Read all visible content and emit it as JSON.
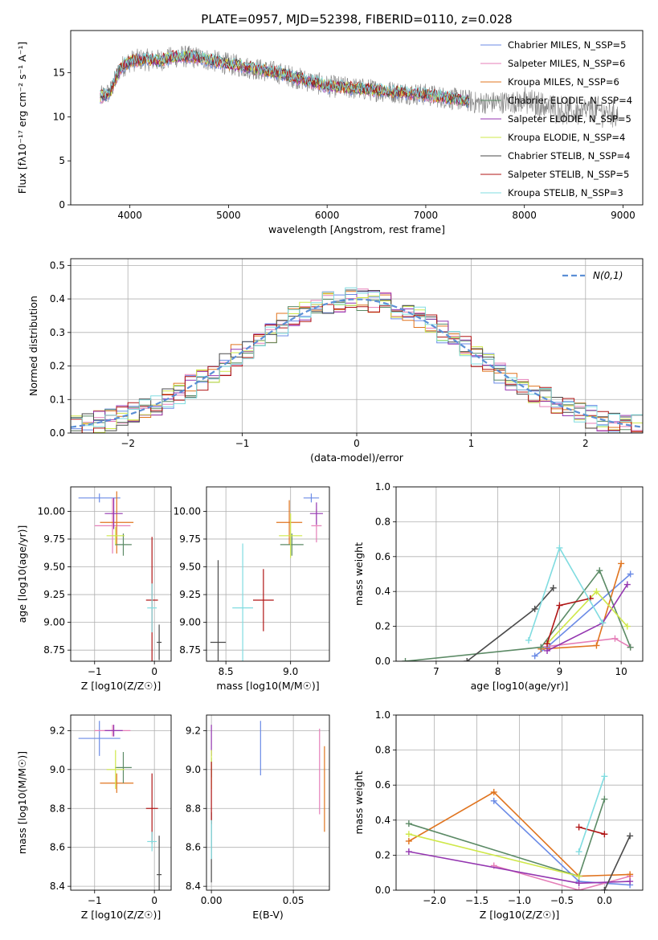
{
  "figure": {
    "title": "PLATE=0957, MJD=52398, FIBERID=0110, z=0.028"
  },
  "colors": {
    "chabrier_miles": "#6b8be6",
    "salpeter_miles": "#e57fb8",
    "kroupa_miles": "#e0741f",
    "chabrier_elodie": "#5b8a65",
    "salpeter_elodie": "#9436b0",
    "kroupa_elodie": "#cfe84a",
    "chabrier_stelib": "#4a4a4a",
    "salpeter_stelib": "#b01515",
    "kroupa_stelib": "#80dce0",
    "observed_spectrum": "#7f7f7f",
    "normal_fit": "#5b8fd6"
  },
  "chart_data": [
    {
      "id": "spectrum",
      "type": "line",
      "xlabel": "wavelength [Angstrom, rest frame]",
      "ylabel": "Flux [fλ10⁻¹⁷ erg cm⁻² s⁻¹ A⁻¹]",
      "xlim": [
        3400,
        9200
      ],
      "ylim": [
        0,
        19.8
      ],
      "xticks": [
        4000,
        5000,
        6000,
        7000,
        8000,
        9000
      ],
      "yticks": [
        0,
        5,
        10,
        15
      ],
      "legend_position": "top-right",
      "legend": [
        "Chabrier MILES, N_SSP=5",
        "Salpeter MILES, N_SSP=6",
        "Kroupa MILES, N_SSP=6",
        "Chabrier ELODIE, N_SSP=4",
        "Salpeter ELODIE, N_SSP=5",
        "Kroupa ELODIE, N_SSP=4",
        "Chabrier STELIB, N_SSP=4",
        "Salpeter STELIB, N_SSP=5",
        "Kroupa STELIB, N_SSP=3"
      ],
      "model_range": [
        3700,
        7440
      ],
      "continuum": [
        [
          3700,
          12.2
        ],
        [
          3800,
          12.8
        ],
        [
          3900,
          15.5
        ],
        [
          4000,
          16.3
        ],
        [
          4100,
          16.5
        ],
        [
          4300,
          16.4
        ],
        [
          4500,
          16.9
        ],
        [
          4700,
          16.7
        ],
        [
          5000,
          16.0
        ],
        [
          5500,
          15.0
        ],
        [
          6000,
          13.5
        ],
        [
          6500,
          13.0
        ],
        [
          7000,
          12.5
        ],
        [
          7440,
          11.8
        ],
        [
          7500,
          11.6
        ],
        [
          8000,
          11.7
        ],
        [
          8500,
          10.5
        ],
        [
          8700,
          10.8
        ],
        [
          8950,
          10.3
        ]
      ]
    },
    {
      "id": "residuals",
      "type": "line",
      "xlabel": "(data-model)/error",
      "ylabel": "Normed distribution",
      "xlim": [
        -2.5,
        2.5
      ],
      "ylim": [
        0,
        0.52
      ],
      "xticks": [
        -2,
        -1,
        0,
        1,
        2
      ],
      "yticks": [
        0.0,
        0.1,
        0.2,
        0.3,
        0.4,
        0.5
      ],
      "grid": true,
      "legend_position": "top-right",
      "legend": [
        "N(0,1)"
      ],
      "histogram_bins": 50
    },
    {
      "id": "age_vs_z",
      "type": "scatter",
      "xlabel": "Z [log10(Z/Z☉)]",
      "ylabel": "age  [log10(age/yr)]",
      "xlim": [
        -1.4,
        0.28
      ],
      "ylim": [
        8.65,
        10.22
      ],
      "xticks": [
        -1,
        0
      ],
      "yticks": [
        8.75,
        9.0,
        9.25,
        9.5,
        9.75,
        10.0
      ],
      "grid": true,
      "points": [
        {
          "model": "chabrier_miles",
          "x": -0.92,
          "xerr": 0.35,
          "y": 10.12,
          "yerr": 0.04
        },
        {
          "model": "salpeter_miles",
          "x": -0.7,
          "xerr": 0.3,
          "y": 9.87,
          "yerr": 0.25
        },
        {
          "model": "kroupa_miles",
          "x": -0.63,
          "xerr": 0.28,
          "y": 9.9,
          "yerr": 0.28
        },
        {
          "model": "chabrier_elodie",
          "x": -0.52,
          "xerr": 0.14,
          "y": 9.7,
          "yerr": 0.1
        },
        {
          "model": "salpeter_elodie",
          "x": -0.68,
          "xerr": 0.15,
          "y": 9.98,
          "yerr": 0.14
        },
        {
          "model": "kroupa_elodie",
          "x": -0.65,
          "xerr": 0.15,
          "y": 9.78,
          "yerr": 0.08
        },
        {
          "model": "chabrier_stelib",
          "x": 0.08,
          "xerr": 0.04,
          "y": 8.82,
          "yerr": 0.16
        },
        {
          "model": "salpeter_stelib",
          "x": -0.04,
          "xerr": 0.1,
          "y": 9.2,
          "yerr": 0.57
        },
        {
          "model": "kroupa_stelib",
          "x": -0.04,
          "xerr": 0.08,
          "y": 9.13,
          "yerr": 0.22
        }
      ]
    },
    {
      "id": "age_vs_mass",
      "type": "scatter",
      "xlabel": "mass [log10(M/M☉)]",
      "ylabel": "",
      "xlim": [
        8.35,
        9.3
      ],
      "ylim": [
        8.65,
        10.22
      ],
      "xticks": [
        8.5,
        9.0
      ],
      "yticks": [
        8.75,
        9.0,
        9.25,
        9.5,
        9.75,
        10.0
      ],
      "grid": true,
      "points": [
        {
          "model": "chabrier_miles",
          "x": 9.16,
          "xerr": 0.06,
          "y": 10.12,
          "yerr": 0.04
        },
        {
          "model": "salpeter_miles",
          "x": 9.2,
          "xerr": 0.04,
          "y": 9.87,
          "yerr": 0.15
        },
        {
          "model": "kroupa_miles",
          "x": 8.99,
          "xerr": 0.1,
          "y": 9.9,
          "yerr": 0.2
        },
        {
          "model": "chabrier_elodie",
          "x": 9.01,
          "xerr": 0.09,
          "y": 9.7,
          "yerr": 0.1
        },
        {
          "model": "salpeter_elodie",
          "x": 9.2,
          "xerr": 0.05,
          "y": 9.98,
          "yerr": 0.1
        },
        {
          "model": "kroupa_elodie",
          "x": 9.0,
          "xerr": 0.09,
          "y": 9.78,
          "yerr": 0.2
        },
        {
          "model": "chabrier_stelib",
          "x": 8.44,
          "xerr": 0.06,
          "y": 8.82,
          "yerr": 0.74
        },
        {
          "model": "salpeter_stelib",
          "x": 8.79,
          "xerr": 0.08,
          "y": 9.2,
          "yerr": 0.28
        },
        {
          "model": "kroupa_stelib",
          "x": 8.63,
          "xerr": 0.08,
          "y": 9.13,
          "yerr": 0.58
        }
      ]
    },
    {
      "id": "weight_vs_age",
      "type": "line",
      "xlabel": "age  [log10(age/yr)]",
      "ylabel": "mass weight",
      "xlim": [
        6.35,
        10.35
      ],
      "ylim": [
        0,
        1.0
      ],
      "xticks": [
        7,
        8,
        9,
        10
      ],
      "yticks": [
        0.0,
        0.2,
        0.4,
        0.6,
        0.8,
        1.0
      ],
      "grid": true,
      "series": [
        {
          "model": "chabrier_miles",
          "x": [
            8.6,
            8.8,
            10.15
          ],
          "y": [
            0.03,
            0.08,
            0.5
          ]
        },
        {
          "model": "salpeter_miles",
          "x": [
            8.7,
            9.9,
            10.15
          ],
          "y": [
            0.08,
            0.13,
            0.08
          ]
        },
        {
          "model": "kroupa_miles",
          "x": [
            8.7,
            9.6,
            10.0
          ],
          "y": [
            0.07,
            0.09,
            0.56
          ]
        },
        {
          "model": "chabrier_elodie",
          "x": [
            6.5,
            8.7,
            9.65,
            10.15
          ],
          "y": [
            0.0,
            0.08,
            0.52,
            0.08
          ]
        },
        {
          "model": "salpeter_elodie",
          "x": [
            8.8,
            9.7,
            10.1
          ],
          "y": [
            0.06,
            0.22,
            0.44
          ]
        },
        {
          "model": "kroupa_elodie",
          "x": [
            8.8,
            9.6,
            10.1
          ],
          "y": [
            0.1,
            0.4,
            0.2
          ]
        },
        {
          "model": "chabrier_stelib",
          "x": [
            7.5,
            8.6,
            8.9
          ],
          "y": [
            0.0,
            0.3,
            0.42
          ]
        },
        {
          "model": "salpeter_stelib",
          "x": [
            8.8,
            9.0,
            9.5
          ],
          "y": [
            0.1,
            0.32,
            0.36
          ]
        },
        {
          "model": "kroupa_stelib",
          "x": [
            8.5,
            9.0,
            9.7
          ],
          "y": [
            0.12,
            0.65,
            0.22
          ]
        }
      ]
    },
    {
      "id": "mass_vs_z",
      "type": "scatter",
      "xlabel": "Z [log10(Z/Z☉)]",
      "ylabel": "mass [log10(M/M☉)]",
      "xlim": [
        -1.4,
        0.28
      ],
      "ylim": [
        8.38,
        9.28
      ],
      "xticks": [
        -1,
        0
      ],
      "yticks": [
        8.4,
        8.6,
        8.8,
        9.0,
        9.2
      ],
      "grid": true,
      "points": [
        {
          "model": "chabrier_miles",
          "x": -0.92,
          "xerr": 0.35,
          "y": 9.16,
          "yerr": 0.09
        },
        {
          "model": "salpeter_miles",
          "x": -0.7,
          "xerr": 0.3,
          "y": 9.2,
          "yerr": 0.03
        },
        {
          "model": "kroupa_miles",
          "x": -0.63,
          "xerr": 0.28,
          "y": 8.93,
          "yerr": 0.05
        },
        {
          "model": "chabrier_elodie",
          "x": -0.52,
          "xerr": 0.14,
          "y": 9.01,
          "yerr": 0.08
        },
        {
          "model": "salpeter_elodie",
          "x": -0.68,
          "xerr": 0.15,
          "y": 9.2,
          "yerr": 0.03
        },
        {
          "model": "kroupa_elodie",
          "x": -0.65,
          "xerr": 0.15,
          "y": 9.0,
          "yerr": 0.1
        },
        {
          "model": "chabrier_stelib",
          "x": 0.08,
          "xerr": 0.04,
          "y": 8.46,
          "yerr": 0.2
        },
        {
          "model": "salpeter_stelib",
          "x": -0.04,
          "xerr": 0.1,
          "y": 8.8,
          "yerr": 0.18
        },
        {
          "model": "kroupa_stelib",
          "x": -0.04,
          "xerr": 0.08,
          "y": 8.63,
          "yerr": 0.05
        }
      ]
    },
    {
      "id": "mass_vs_ebv",
      "type": "scatter",
      "xlabel": "E(B-V)",
      "ylabel": "",
      "xlim": [
        -0.003,
        0.072
      ],
      "ylim": [
        8.38,
        9.28
      ],
      "xticks": [
        0.0,
        0.05
      ],
      "yticks": [
        8.4,
        8.6,
        8.8,
        9.0,
        9.2
      ],
      "grid": true,
      "points": [
        {
          "model": "chabrier_miles",
          "x": 0.03,
          "xerr": 0.0,
          "y": 9.11,
          "yerr": 0.14
        },
        {
          "model": "salpeter_miles",
          "x": 0.066,
          "xerr": 0.0,
          "y": 8.99,
          "yerr": 0.22
        },
        {
          "model": "kroupa_miles",
          "x": 0.069,
          "xerr": 0.0,
          "y": 8.9,
          "yerr": 0.22
        },
        {
          "model": "chabrier_elodie",
          "x": 0.0,
          "xerr": 0.0,
          "y": 9.01,
          "yerr": 0.05
        },
        {
          "model": "salpeter_elodie",
          "x": 0.0,
          "xerr": 0.0,
          "y": 9.15,
          "yerr": 0.08
        },
        {
          "model": "kroupa_elodie",
          "x": 0.0,
          "xerr": 0.0,
          "y": 9.0,
          "yerr": 0.1
        },
        {
          "model": "chabrier_stelib",
          "x": 0.0,
          "xerr": 0.0,
          "y": 8.6,
          "yerr": 0.18
        },
        {
          "model": "salpeter_stelib",
          "x": 0.0,
          "xerr": 0.0,
          "y": 8.88,
          "yerr": 0.16
        },
        {
          "model": "kroupa_stelib",
          "x": 0.0,
          "xerr": 0.0,
          "y": 8.64,
          "yerr": 0.1
        }
      ]
    },
    {
      "id": "weight_vs_z",
      "type": "line",
      "xlabel": "Z [log10(Z/Z☉)]",
      "ylabel": "mass weight",
      "xlim": [
        -2.45,
        0.45
      ],
      "ylim": [
        0,
        1.0
      ],
      "xticks": [
        -2.0,
        -1.5,
        -1.0,
        -0.5,
        0.0
      ],
      "yticks": [
        0.0,
        0.2,
        0.4,
        0.6,
        0.8,
        1.0
      ],
      "grid": true,
      "series": [
        {
          "model": "chabrier_miles",
          "x": [
            -1.3,
            -0.3,
            0.3
          ],
          "y": [
            0.51,
            0.05,
            0.03
          ]
        },
        {
          "model": "salpeter_miles",
          "x": [
            -1.3,
            -0.3,
            0.3
          ],
          "y": [
            0.14,
            0.0,
            0.08
          ]
        },
        {
          "model": "kroupa_miles",
          "x": [
            -2.3,
            -1.3,
            -0.3,
            0.3
          ],
          "y": [
            0.28,
            0.56,
            0.08,
            0.09
          ]
        },
        {
          "model": "chabrier_elodie",
          "x": [
            -2.3,
            -0.3,
            0.0
          ],
          "y": [
            0.38,
            0.08,
            0.52
          ]
        },
        {
          "model": "salpeter_elodie",
          "x": [
            -2.3,
            -0.3,
            0.3
          ],
          "y": [
            0.22,
            0.04,
            0.05
          ]
        },
        {
          "model": "kroupa_elodie",
          "x": [
            -2.3,
            -0.3
          ],
          "y": [
            0.32,
            0.08
          ]
        },
        {
          "model": "chabrier_stelib",
          "x": [
            -0.0,
            0.3
          ],
          "y": [
            0.0,
            0.31
          ]
        },
        {
          "model": "salpeter_stelib",
          "x": [
            -0.3,
            0.0
          ],
          "y": [
            0.36,
            0.32
          ]
        },
        {
          "model": "kroupa_stelib",
          "x": [
            -0.3,
            0.0
          ],
          "y": [
            0.22,
            0.65
          ]
        }
      ]
    }
  ]
}
